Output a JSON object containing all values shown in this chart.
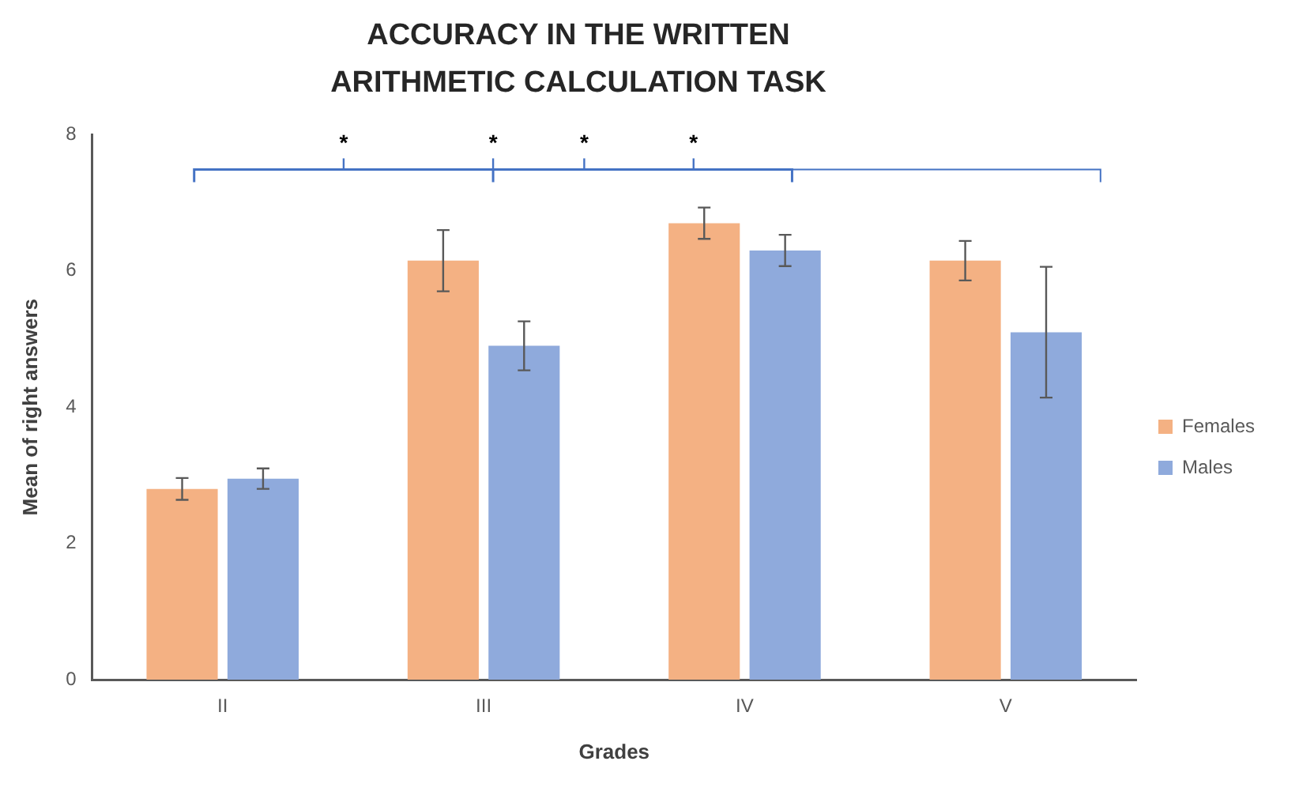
{
  "chart_data": {
    "type": "bar",
    "title": "ACCURACY IN THE WRITTEN ARITHMETIC CALCULATION TASK",
    "xlabel": "Grades",
    "ylabel": "Mean of right answers",
    "categories": [
      "II",
      "III",
      "IV",
      "V"
    ],
    "series": [
      {
        "name": "Females",
        "color": "#f4b183",
        "values": [
          2.8,
          6.15,
          6.7,
          6.15
        ],
        "errors": [
          0.16,
          0.45,
          0.23,
          0.29
        ]
      },
      {
        "name": "Males",
        "color": "#8faadc",
        "values": [
          2.95,
          4.9,
          6.3,
          5.1
        ],
        "errors": [
          0.15,
          0.36,
          0.23,
          0.96
        ]
      }
    ],
    "ylim": [
      0,
      8
    ],
    "yticks": [
      0,
      2,
      4,
      6,
      8
    ],
    "grid": false,
    "legend": "right",
    "annotations": [
      "*",
      "*",
      "*",
      "*"
    ]
  }
}
